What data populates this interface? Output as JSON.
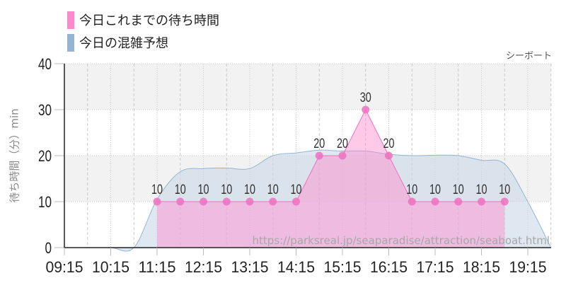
{
  "legend": {
    "items": [
      {
        "label": "今日これまでの待ち時間",
        "color": "#ff88cc"
      },
      {
        "label": "今日の混雑予想",
        "color": "#93b4d2"
      }
    ]
  },
  "attraction_name": "シーボート",
  "source_url": "https://parksreal.jp/seaparadise/attraction/seaboat.html",
  "chart_data": {
    "type": "area",
    "title": "",
    "xlabel": "",
    "ylabel": "待ち時間（分）min",
    "ylim": [
      0,
      40
    ],
    "yticks": [
      0,
      10,
      20,
      30,
      40
    ],
    "xlim": [
      "09:15",
      "19:45"
    ],
    "xticks": [
      "09:15",
      "10:15",
      "11:15",
      "12:15",
      "13:15",
      "14:15",
      "15:15",
      "16:15",
      "17:15",
      "18:15",
      "19:15"
    ],
    "grid": {
      "horizontal_bands": true,
      "vertical_hour": "dotted",
      "vertical_half_hour": "dashed"
    },
    "legend_position": "top-left",
    "series": [
      {
        "name": "今日これまでの待ち時間",
        "style": "line-with-markers-filled",
        "color": "#f070c0",
        "fill": "#ff88cc",
        "x": [
          "11:15",
          "11:45",
          "12:15",
          "12:45",
          "13:15",
          "13:45",
          "14:15",
          "14:45",
          "15:15",
          "15:45",
          "16:15",
          "16:45",
          "17:15",
          "17:45",
          "18:15",
          "18:45"
        ],
        "values": [
          10,
          10,
          10,
          10,
          10,
          10,
          10,
          20,
          20,
          30,
          20,
          10,
          10,
          10,
          10,
          10
        ]
      },
      {
        "name": "今日の混雑予想",
        "style": "smooth-area",
        "color": "#93b4d2",
        "fill": "#c9d9e8",
        "x": [
          "09:15",
          "09:45",
          "10:15",
          "10:45",
          "11:15",
          "11:45",
          "12:15",
          "12:45",
          "13:15",
          "13:45",
          "14:15",
          "14:45",
          "15:15",
          "15:45",
          "16:15",
          "16:45",
          "17:15",
          "17:45",
          "18:15",
          "18:45",
          "19:15",
          "19:45"
        ],
        "values": [
          0,
          0,
          0,
          0,
          10.5,
          16.5,
          17.2,
          17.3,
          17.2,
          20,
          20.6,
          21.2,
          21,
          21,
          20.3,
          20,
          20.1,
          20,
          19,
          18.2,
          10,
          0
        ]
      }
    ]
  }
}
